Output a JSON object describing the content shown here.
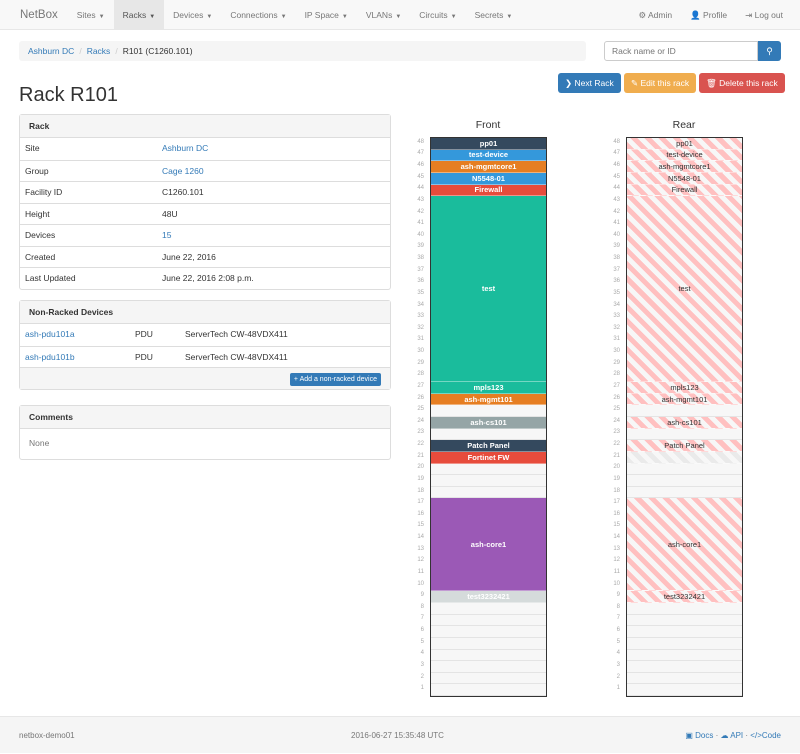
{
  "nav": {
    "brand": "NetBox",
    "items": [
      "Sites",
      "Racks",
      "Devices",
      "Connections",
      "IP Space",
      "VLANs",
      "Circuits",
      "Secrets"
    ],
    "active": "Racks",
    "right": [
      {
        "icon": "gear-icon",
        "label": "Admin"
      },
      {
        "icon": "user-icon",
        "label": "Profile"
      },
      {
        "icon": "logout-icon",
        "label": "Log out"
      }
    ]
  },
  "breadcrumb": [
    "Ashburn DC",
    "Racks",
    "R101 (C1260.101)"
  ],
  "search": {
    "placeholder": "Rack name or ID"
  },
  "buttons": {
    "next": "Next Rack",
    "edit": "Edit this rack",
    "delete": "Delete this rack"
  },
  "colors": {
    "primary": "#337ab7",
    "warning": "#f0ad4e",
    "danger": "#d9534f"
  },
  "title": "Rack R101",
  "rack_panel": {
    "heading": "Rack",
    "rows": [
      {
        "k": "Site",
        "v": "Ashburn DC",
        "link": true
      },
      {
        "k": "Group",
        "v": "Cage 1260",
        "link": true
      },
      {
        "k": "Facility ID",
        "v": "C1260.101"
      },
      {
        "k": "Height",
        "v": "48U"
      },
      {
        "k": "Devices",
        "v": "15",
        "link": true
      },
      {
        "k": "Created",
        "v": "June 22, 2016"
      },
      {
        "k": "Last Updated",
        "v": "June 22, 2016 2:08 p.m."
      }
    ]
  },
  "nonracked": {
    "heading": "Non-Racked Devices",
    "rows": [
      {
        "name": "ash-pdu101a",
        "role": "PDU",
        "type": "ServerTech CW-48VDX411"
      },
      {
        "name": "ash-pdu101b",
        "role": "PDU",
        "type": "ServerTech CW-48VDX411"
      }
    ],
    "add": "Add a non-racked device"
  },
  "comments": {
    "heading": "Comments",
    "body": "None"
  },
  "rack": {
    "front_label": "Front",
    "rear_label": "Rear",
    "height": 48,
    "devices": [
      {
        "name": "pp01",
        "u": 48,
        "h": 1,
        "color": "#34495e"
      },
      {
        "name": "test-device",
        "u": 47,
        "h": 1,
        "color": "#3498db"
      },
      {
        "name": "ash-mgmtcore1",
        "u": 46,
        "h": 1,
        "color": "#e67e22"
      },
      {
        "name": "N5548-01",
        "u": 45,
        "h": 1,
        "color": "#3498db"
      },
      {
        "name": "Firewall",
        "u": 44,
        "h": 1,
        "color": "#e74c3c"
      },
      {
        "name": "test",
        "u": 28,
        "h": 16,
        "color": "#1abc9c"
      },
      {
        "name": "mpls123",
        "u": 27,
        "h": 1,
        "color": "#1abc9c"
      },
      {
        "name": "ash-mgmt101",
        "u": 26,
        "h": 1,
        "color": "#e67e22"
      },
      {
        "name": "ash-cs101",
        "u": 24,
        "h": 1,
        "color": "#95a5a6"
      },
      {
        "name": "Patch Panel",
        "u": 22,
        "h": 1,
        "color": "#34495e"
      },
      {
        "name": "Fortinet FW",
        "u": 21,
        "h": 1,
        "color": "#e74c3c",
        "rear_hidden": true
      },
      {
        "name": "ash-core1",
        "u": 10,
        "h": 8,
        "color": "#9b59b6"
      },
      {
        "name": "test3232421",
        "u": 9,
        "h": 1,
        "color": "#d5dbdb"
      }
    ]
  },
  "footer": {
    "host": "netbox-demo01",
    "time": "2016-06-27 15:35:48 UTC",
    "docs": "Docs",
    "api": "API",
    "code": "Code",
    "sep": "·"
  }
}
